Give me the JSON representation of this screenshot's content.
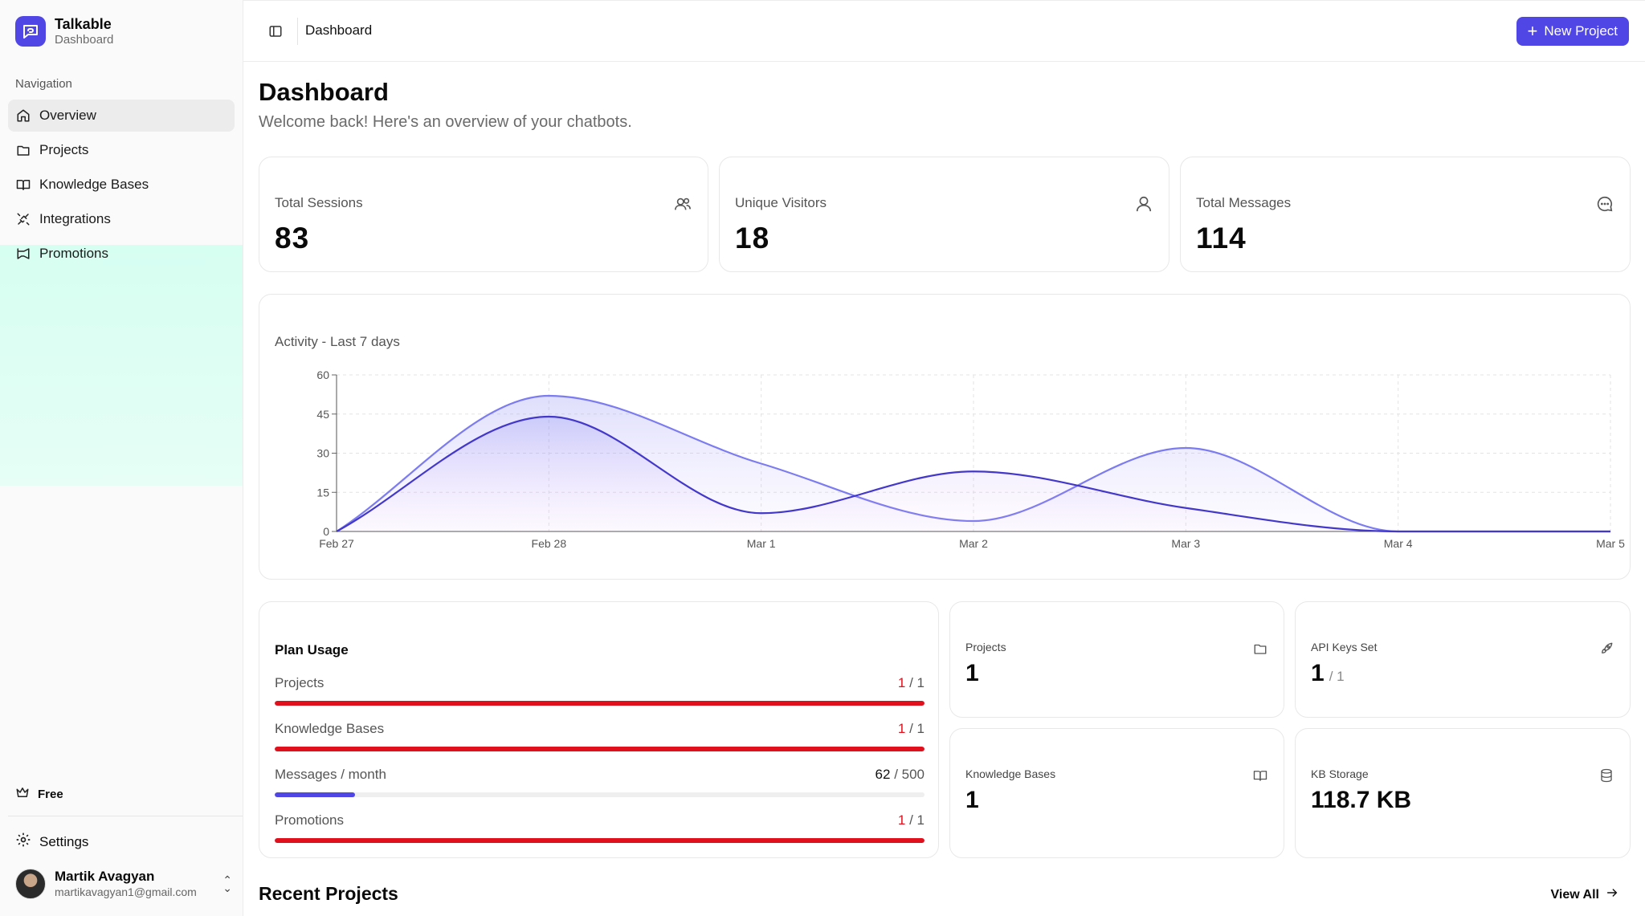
{
  "brand": {
    "name": "Talkable",
    "subtitle": "Dashboard"
  },
  "sidebar": {
    "heading": "Navigation",
    "items": [
      {
        "label": "Overview",
        "icon": "home-icon",
        "active": true
      },
      {
        "label": "Projects",
        "icon": "folder-icon"
      },
      {
        "label": "Knowledge Bases",
        "icon": "book-icon"
      },
      {
        "label": "Integrations",
        "icon": "plug-icon"
      },
      {
        "label": "Promotions",
        "icon": "megaphone-icon"
      }
    ],
    "plan_label": "Free",
    "settings_label": "Settings",
    "user": {
      "name": "Martik Avagyan",
      "email": "martikavagyan1@gmail.com"
    }
  },
  "header": {
    "breadcrumb": "Dashboard",
    "new_project_label": "New Project"
  },
  "page": {
    "title": "Dashboard",
    "subtitle": "Welcome back! Here's an overview of your chatbots."
  },
  "stats": [
    {
      "label": "Total Sessions",
      "value": "83",
      "icon": "users-icon"
    },
    {
      "label": "Unique Visitors",
      "value": "18",
      "icon": "user-icon"
    },
    {
      "label": "Total Messages",
      "value": "114",
      "icon": "message-icon"
    }
  ],
  "chart_data": {
    "type": "area",
    "title": "Activity - Last 7 days",
    "x": [
      "Feb 27",
      "Feb 28",
      "Mar 1",
      "Mar 2",
      "Mar 3",
      "Mar 4",
      "Mar 5"
    ],
    "ylim": [
      0,
      60
    ],
    "yticks": [
      0,
      15,
      30,
      45,
      60
    ],
    "grid": true,
    "series": [
      {
        "values": [
          0,
          52,
          26,
          4,
          32,
          0,
          0
        ],
        "color": "#7c7cf0"
      },
      {
        "values": [
          0,
          44,
          7,
          23,
          9,
          0,
          0
        ],
        "color": "#4338ca"
      }
    ]
  },
  "usage": {
    "title": "Plan Usage",
    "rows": [
      {
        "label": "Projects",
        "used": "1",
        "limit": "/ 1",
        "fraction": 1.0,
        "color": "#e0101c",
        "at_limit": true
      },
      {
        "label": "Knowledge Bases",
        "used": "1",
        "limit": "/ 1",
        "fraction": 1.0,
        "color": "#e0101c",
        "at_limit": true
      },
      {
        "label": "Messages / month",
        "used": "62",
        "limit": "/ 500",
        "fraction": 0.124,
        "color": "#4f46e5",
        "at_limit": false
      },
      {
        "label": "Promotions",
        "used": "1",
        "limit": "/ 1",
        "fraction": 1.0,
        "color": "#e0101c",
        "at_limit": true
      }
    ]
  },
  "mini_stats": {
    "projects": {
      "label": "Projects",
      "value": "1",
      "icon": "folder-icon"
    },
    "api_keys": {
      "label": "API Keys Set",
      "value": "1",
      "denom": "/ 1",
      "icon": "rocket-icon"
    },
    "knowledge_bases": {
      "label": "Knowledge Bases",
      "value": "1",
      "icon": "book-icon"
    },
    "kb_storage": {
      "label": "KB Storage",
      "value": "118.7 KB",
      "fraction": 0.005,
      "icon": "database-icon"
    }
  },
  "recent": {
    "title": "Recent Projects",
    "view_all_label": "View All"
  },
  "colors": {
    "accent": "#4f46e5",
    "danger": "#e0101c"
  }
}
